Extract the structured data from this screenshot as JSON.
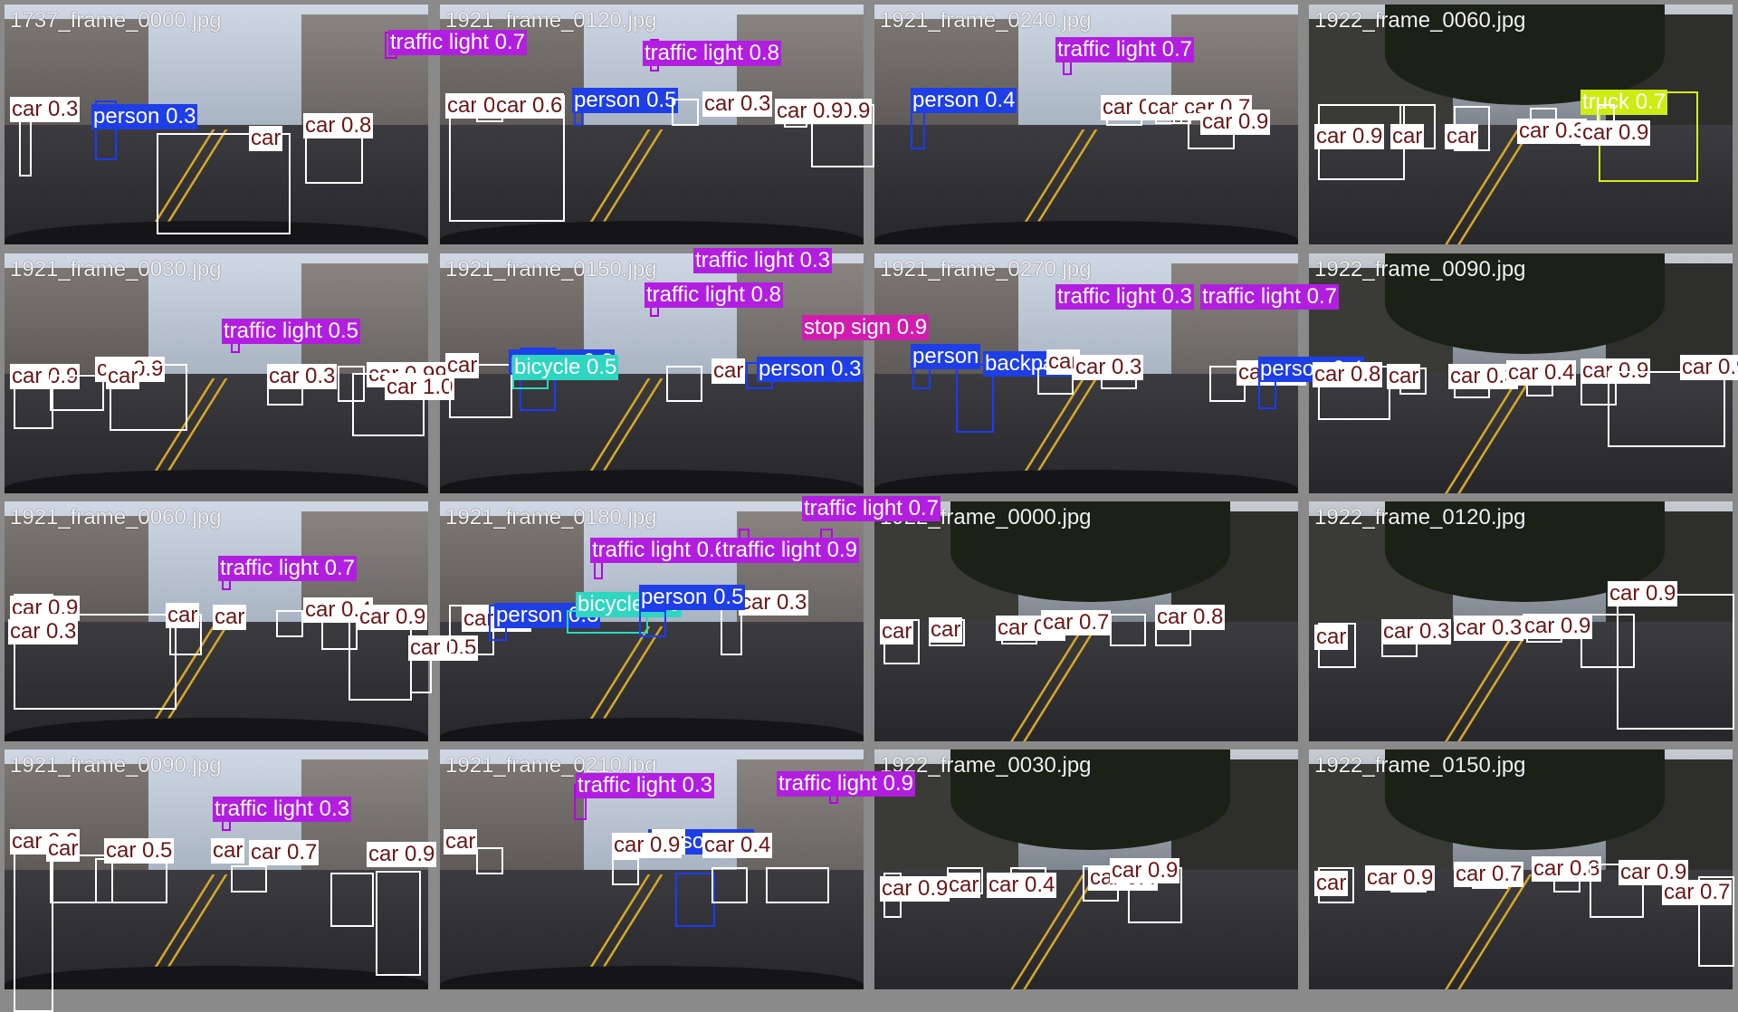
{
  "colors": {
    "car": "#ffffff",
    "person": "#1e3ee6",
    "traffic_light": "#b21ee0",
    "stop_sign": "#d21cb0",
    "truck": "#ccec14",
    "bicycle": "#2fd6c0"
  },
  "tiles": [
    {
      "filename": "1737_frame_0000.jpg",
      "scene": "day",
      "detections": [
        {
          "cls": "traffic light",
          "conf": "0.7"
        },
        {
          "cls": "car",
          "conf": "0.3"
        },
        {
          "cls": "person",
          "conf": "0.3"
        },
        {
          "cls": "car",
          "conf": "0.8"
        },
        {
          "cls": "car",
          "conf": ""
        }
      ]
    },
    {
      "filename": "1921_frame_0120.jpg",
      "scene": "day",
      "detections": [
        {
          "cls": "traffic light",
          "conf": "0.8"
        },
        {
          "cls": "car",
          "conf": "0.6"
        },
        {
          "cls": "car",
          "conf": "0.6"
        },
        {
          "cls": "person",
          "conf": "0.5"
        },
        {
          "cls": "car",
          "conf": "0.3"
        },
        {
          "cls": "car",
          "conf": "0.9"
        },
        {
          "cls": "car",
          "conf": "0.9"
        }
      ]
    },
    {
      "filename": "1921_frame_0240.jpg",
      "scene": "day",
      "detections": [
        {
          "cls": "traffic light",
          "conf": "0.7"
        },
        {
          "cls": "person",
          "conf": "0.4"
        },
        {
          "cls": "car",
          "conf": "0.4"
        },
        {
          "cls": "car",
          "conf": "0.5"
        },
        {
          "cls": "car",
          "conf": "0.7"
        },
        {
          "cls": "car",
          "conf": "0.9"
        }
      ]
    },
    {
      "filename": "1922_frame_0060.jpg",
      "scene": "dark",
      "detections": [
        {
          "cls": "truck",
          "conf": "0.7"
        },
        {
          "cls": "car",
          "conf": "0.9"
        },
        {
          "cls": "car",
          "conf": ""
        },
        {
          "cls": "car",
          "conf": ""
        },
        {
          "cls": "car",
          "conf": "0.3"
        },
        {
          "cls": "car",
          "conf": "0.9"
        }
      ]
    },
    {
      "filename": "1921_frame_0030.jpg",
      "scene": "day",
      "detections": [
        {
          "cls": "traffic light",
          "conf": "0.5"
        },
        {
          "cls": "car",
          "conf": "0.9"
        },
        {
          "cls": "car",
          "conf": "0.9"
        },
        {
          "cls": "car",
          "conf": ""
        },
        {
          "cls": "car",
          "conf": "0.3"
        },
        {
          "cls": "car",
          "conf": "0.99"
        },
        {
          "cls": "car",
          "conf": "1.0"
        }
      ]
    },
    {
      "filename": "1921_frame_0150.jpg",
      "scene": "day",
      "detections": [
        {
          "cls": "traffic light",
          "conf": "0.3"
        },
        {
          "cls": "traffic light",
          "conf": "0.8"
        },
        {
          "cls": "stop sign",
          "conf": "0.9"
        },
        {
          "cls": "car",
          "conf": ""
        },
        {
          "cls": "person",
          "conf": "0.3"
        },
        {
          "cls": "bicycle",
          "conf": "0.5"
        },
        {
          "cls": "car",
          "conf": ""
        },
        {
          "cls": "person",
          "conf": "0.3"
        }
      ]
    },
    {
      "filename": "1921_frame_0270.jpg",
      "scene": "day",
      "detections": [
        {
          "cls": "traffic light",
          "conf": "0.3"
        },
        {
          "cls": "traffic light",
          "conf": "0.7"
        },
        {
          "cls": "person",
          "conf": ""
        },
        {
          "cls": "backpack",
          "conf": ""
        },
        {
          "cls": "car",
          "conf": ""
        },
        {
          "cls": "car",
          "conf": "0.3"
        },
        {
          "cls": "car",
          "conf": "0.9"
        },
        {
          "cls": "person",
          "conf": "0.4"
        }
      ]
    },
    {
      "filename": "1922_frame_0090.jpg",
      "scene": "dark",
      "detections": [
        {
          "cls": "car",
          "conf": "0.8"
        },
        {
          "cls": "car",
          "conf": ""
        },
        {
          "cls": "car",
          "conf": "0.3"
        },
        {
          "cls": "car",
          "conf": "0.4"
        },
        {
          "cls": "car",
          "conf": "0.9"
        },
        {
          "cls": "car",
          "conf": "0.9"
        }
      ]
    },
    {
      "filename": "1921_frame_0060.jpg",
      "scene": "day",
      "detections": [
        {
          "cls": "traffic light",
          "conf": "0.7"
        },
        {
          "cls": "car",
          "conf": "0.9"
        },
        {
          "cls": "car",
          "conf": "0.3"
        },
        {
          "cls": "car",
          "conf": ""
        },
        {
          "cls": "car",
          "conf": ""
        },
        {
          "cls": "car",
          "conf": "0.4"
        },
        {
          "cls": "car",
          "conf": "0.9"
        },
        {
          "cls": "car",
          "conf": "0.5"
        }
      ]
    },
    {
      "filename": "1921_frame_0180.jpg",
      "scene": "day",
      "detections": [
        {
          "cls": "traffic light",
          "conf": "0.7"
        },
        {
          "cls": "traffic light",
          "conf": "0.6"
        },
        {
          "cls": "traffic light",
          "conf": "0.9"
        },
        {
          "cls": "car",
          "conf": "0.3"
        },
        {
          "cls": "person",
          "conf": "0.3"
        },
        {
          "cls": "bicycle",
          "conf": "0.6"
        },
        {
          "cls": "car",
          "conf": "0.3"
        },
        {
          "cls": "person",
          "conf": "0.5"
        }
      ]
    },
    {
      "filename": "1922_frame_0000.jpg",
      "scene": "dark",
      "detections": [
        {
          "cls": "car",
          "conf": ""
        },
        {
          "cls": "car",
          "conf": ""
        },
        {
          "cls": "car",
          "conf": "0.3"
        },
        {
          "cls": "car",
          "conf": "0.7"
        },
        {
          "cls": "car",
          "conf": "0.8"
        }
      ]
    },
    {
      "filename": "1922_frame_0120.jpg",
      "scene": "dark",
      "detections": [
        {
          "cls": "car",
          "conf": "0.9"
        },
        {
          "cls": "car",
          "conf": ""
        },
        {
          "cls": "car",
          "conf": "0.3"
        },
        {
          "cls": "car",
          "conf": "0.3"
        },
        {
          "cls": "car",
          "conf": "0.9"
        }
      ]
    },
    {
      "filename": "1921_frame_0090.jpg",
      "scene": "day",
      "detections": [
        {
          "cls": "traffic light",
          "conf": "0.3"
        },
        {
          "cls": "car",
          "conf": "0.9"
        },
        {
          "cls": "car",
          "conf": ""
        },
        {
          "cls": "car",
          "conf": "0.5"
        },
        {
          "cls": "car",
          "conf": ""
        },
        {
          "cls": "car",
          "conf": "0.7"
        },
        {
          "cls": "car",
          "conf": "0.9"
        }
      ]
    },
    {
      "filename": "1921_frame_0210.jpg",
      "scene": "day",
      "detections": [
        {
          "cls": "traffic light",
          "conf": "0.3"
        },
        {
          "cls": "traffic light",
          "conf": "0.9"
        },
        {
          "cls": "car",
          "conf": ""
        },
        {
          "cls": "person",
          "conf": "0.7"
        },
        {
          "cls": "car",
          "conf": ""
        },
        {
          "cls": "car",
          "conf": "0.4"
        },
        {
          "cls": "car",
          "conf": "0.9"
        }
      ]
    },
    {
      "filename": "1922_frame_0030.jpg",
      "scene": "dark",
      "detections": [
        {
          "cls": "car",
          "conf": "0.9"
        },
        {
          "cls": "car",
          "conf": ""
        },
        {
          "cls": "car",
          "conf": "0.4"
        },
        {
          "cls": "car",
          "conf": "0.4"
        },
        {
          "cls": "car",
          "conf": "0.9"
        }
      ]
    },
    {
      "filename": "1922_frame_0150.jpg",
      "scene": "dark",
      "detections": [
        {
          "cls": "car",
          "conf": ""
        },
        {
          "cls": "car",
          "conf": "0.9"
        },
        {
          "cls": "car",
          "conf": "0.7"
        },
        {
          "cls": "car",
          "conf": "0.8"
        },
        {
          "cls": "car",
          "conf": "0.9"
        },
        {
          "cls": "car",
          "conf": "0.7"
        }
      ]
    }
  ]
}
